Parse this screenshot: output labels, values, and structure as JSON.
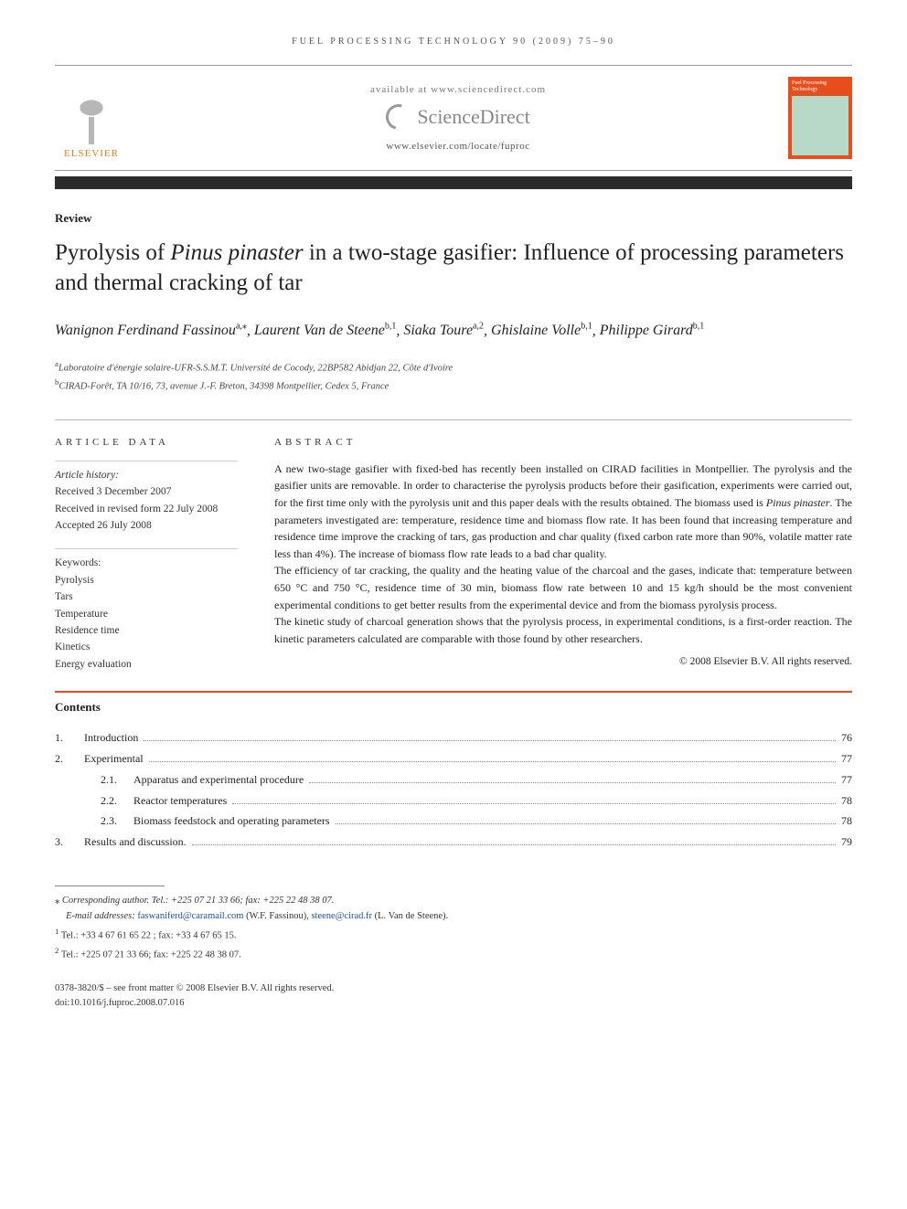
{
  "colors": {
    "accent_orange": "#e84e1b",
    "elsevier_orange": "#e67817",
    "text": "#333333",
    "rule": "#bbbbbb",
    "link": "#1a4fa0",
    "dark_bar": "#2b2b2b"
  },
  "running_head": "FUEL PROCESSING TECHNOLOGY 90 (2009) 75–90",
  "header": {
    "publisher": "ELSEVIER",
    "available_at": "available at www.sciencedirect.com",
    "sciencedirect": "ScienceDirect",
    "journal_url": "www.elsevier.com/locate/fuproc",
    "journal_cover_title": "Fuel Processing Technology"
  },
  "article_type": "Review",
  "title_pre": "Pyrolysis of ",
  "title_species": "Pinus pinaster",
  "title_post": " in a two-stage gasifier: Influence of processing parameters and thermal cracking of tar",
  "authors_html": "Wanignon Ferdinand Fassinou{a,*}, Laurent Van de Steene{b,1}, Siaka Toure{a,2}, Ghislaine Volle{b,1}, Philippe Girard{b,1}",
  "authors": [
    {
      "name": "Wanignon Ferdinand Fassinou",
      "sup": "a,⁎"
    },
    {
      "name": "Laurent Van de Steene",
      "sup": "b,1"
    },
    {
      "name": "Siaka Toure",
      "sup": "a,2"
    },
    {
      "name": "Ghislaine Volle",
      "sup": "b,1"
    },
    {
      "name": "Philippe Girard",
      "sup": "b,1"
    }
  ],
  "affiliations": [
    {
      "sup": "a",
      "text": "Laboratoire d'énergie solaire-UFR-S.S.M.T. Université de Cocody, 22BP582 Abidjan 22, Côte d'Ivoire"
    },
    {
      "sup": "b",
      "text": "CIRAD-Forêt, TA 10/16, 73, avenue J.-F. Breton, 34398 Montpellier, Cedex 5, France"
    }
  ],
  "article_data_heading": "ARTICLE DATA",
  "history_title": "Article history:",
  "history": [
    "Received 3 December 2007",
    "Received in revised form 22 July 2008",
    "Accepted 26 July 2008"
  ],
  "keywords_title": "Keywords:",
  "keywords": [
    "Pyrolysis",
    "Tars",
    "Temperature",
    "Residence time",
    "Kinetics",
    "Energy evaluation"
  ],
  "abstract_heading": "ABSTRACT",
  "abstract_p1a": "A new two-stage gasifier with fixed-bed has recently been installed on CIRAD facilities in Montpellier. The pyrolysis and the gasifier units are removable. In order to characterise the pyrolysis products before their gasification, experiments were carried out, for the first time only with the pyrolysis unit and this paper deals with the results obtained. The biomass used is ",
  "abstract_species": "Pinus pinaster",
  "abstract_p1b": ". The parameters investigated are: temperature, residence time and biomass flow rate. It has been found that increasing temperature and residence time improve the cracking of tars, gas production and char quality (fixed carbon rate more than 90%, volatile matter rate less than 4%). The increase of biomass flow rate leads to a bad char quality.",
  "abstract_p2": "The efficiency of tar cracking, the quality and the heating value of the charcoal and the gases, indicate that: temperature between 650 °C and 750 °C, residence time of 30 min, biomass flow rate between 10 and 15 kg/h should be the most convenient experimental conditions to get better results from the experimental device and from the biomass pyrolysis process.",
  "abstract_p3": "The kinetic study of charcoal generation shows that the pyrolysis process, in experimental conditions, is a first-order reaction. The kinetic parameters calculated are comparable with those found by other researchers.",
  "copyright": "© 2008 Elsevier B.V. All rights reserved.",
  "contents_heading": "Contents",
  "toc": [
    {
      "num": "1.",
      "label": "Introduction",
      "page": "76",
      "sub": false
    },
    {
      "num": "2.",
      "label": "Experimental",
      "page": "77",
      "sub": false
    },
    {
      "num": "2.1.",
      "label": "Apparatus and experimental procedure",
      "page": "77",
      "sub": true
    },
    {
      "num": "2.2.",
      "label": "Reactor temperatures",
      "page": "78",
      "sub": true
    },
    {
      "num": "2.3.",
      "label": "Biomass feedstock and operating parameters",
      "page": "78",
      "sub": true
    },
    {
      "num": "3.",
      "label": "Results and discussion.",
      "page": "79",
      "sub": false
    }
  ],
  "footnotes": {
    "corresponding": "Corresponding author. Tel.: +225 07 21 33 66; fax: +225 22 48 38 07.",
    "emails_label": "E-mail addresses:",
    "email1": "faswaniferd@caramail.com",
    "email1_who": "(W.F. Fassinou),",
    "email2": "steene@cirad.fr",
    "email2_who": "(L. Van de Steene).",
    "fn1": "Tel.: +33 4 67 61 65 22 ; fax: +33 4 67 65 15.",
    "fn2": "Tel.: +225 07 21 33 66; fax: +225 22 48 38 07."
  },
  "footer": {
    "line1": "0378-3820/$ – see front matter © 2008 Elsevier B.V. All rights reserved.",
    "line2": "doi:10.1016/j.fuproc.2008.07.016"
  }
}
